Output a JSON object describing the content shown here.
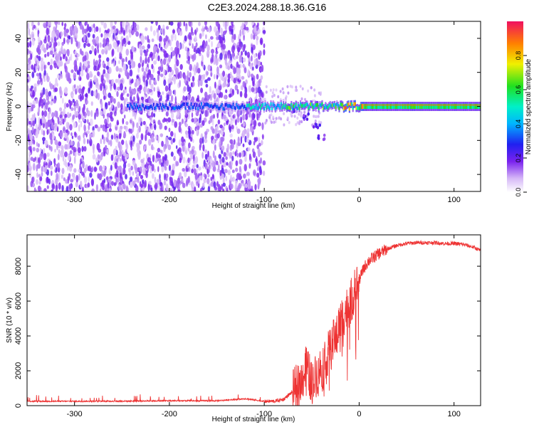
{
  "title": "C2E3.2024.288.18.36.G16",
  "chart_data": [
    {
      "type": "heatmap",
      "xlabel": "Height of straight line (km)",
      "ylabel": "Frequency (Hz)",
      "xlim": [
        -350,
        128
      ],
      "ylim": [
        -50,
        50
      ],
      "xticks": [
        -300,
        -200,
        -100,
        0,
        100
      ],
      "yticks": [
        -40,
        -20,
        0,
        20,
        40
      ],
      "colorbar": {
        "label": "Normalized spectral amplitude",
        "range": [
          0,
          1
        ],
        "ticks": [
          "0.0",
          "0.2",
          "0.4",
          "0.6",
          "0.8"
        ]
      },
      "features": {
        "noise_region_x": [
          -350,
          -100
        ],
        "signal_line_freq": 0,
        "signal_line_start_x": -245,
        "tail_points": [
          [
            -70,
            -2
          ],
          [
            -55,
            -6
          ],
          [
            -45,
            -12
          ],
          [
            -40,
            -18
          ]
        ]
      }
    },
    {
      "type": "line",
      "xlabel": "Height of straight line (km)",
      "ylabel": "SNR (10 * v/v)",
      "xlim": [
        -350,
        128
      ],
      "ylim": [
        0,
        9800
      ],
      "xticks": [
        -300,
        -200,
        -100,
        0,
        100
      ],
      "yticks": [
        0,
        2000,
        4000,
        6000,
        8000
      ],
      "color": "#ee3333",
      "series": [
        {
          "x": [
            -350,
            -300,
            -250,
            -200,
            -150,
            -120,
            -100,
            -90,
            -80,
            -70,
            -60,
            -55,
            -50,
            -45,
            -40,
            -35,
            -30,
            -25,
            -20,
            -15,
            -10,
            -5,
            0,
            5,
            10,
            15,
            20,
            25,
            30,
            40,
            50,
            60,
            70,
            80,
            90,
            100,
            110,
            120,
            128
          ],
          "y": [
            250,
            250,
            260,
            280,
            280,
            400,
            250,
            250,
            350,
            800,
            1500,
            2300,
            1300,
            1800,
            2200,
            2800,
            3200,
            4000,
            4800,
            5400,
            5800,
            6500,
            7200,
            7900,
            8300,
            8500,
            8700,
            8850,
            9000,
            9200,
            9300,
            9350,
            9350,
            9350,
            9300,
            9300,
            9250,
            9100,
            8900
          ]
        }
      ]
    }
  ]
}
